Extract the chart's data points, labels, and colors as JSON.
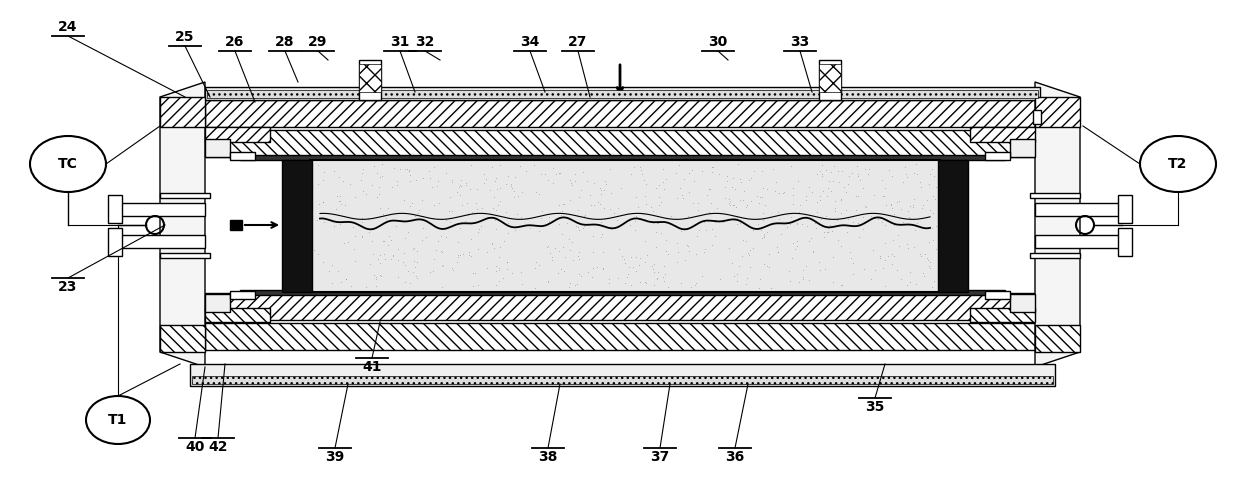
{
  "bg_color": "#ffffff",
  "lc": "#000000",
  "figsize": [
    12.39,
    4.82
  ],
  "dpi": 100,
  "xlim": [
    0,
    1239
  ],
  "ylim": [
    0,
    482
  ]
}
